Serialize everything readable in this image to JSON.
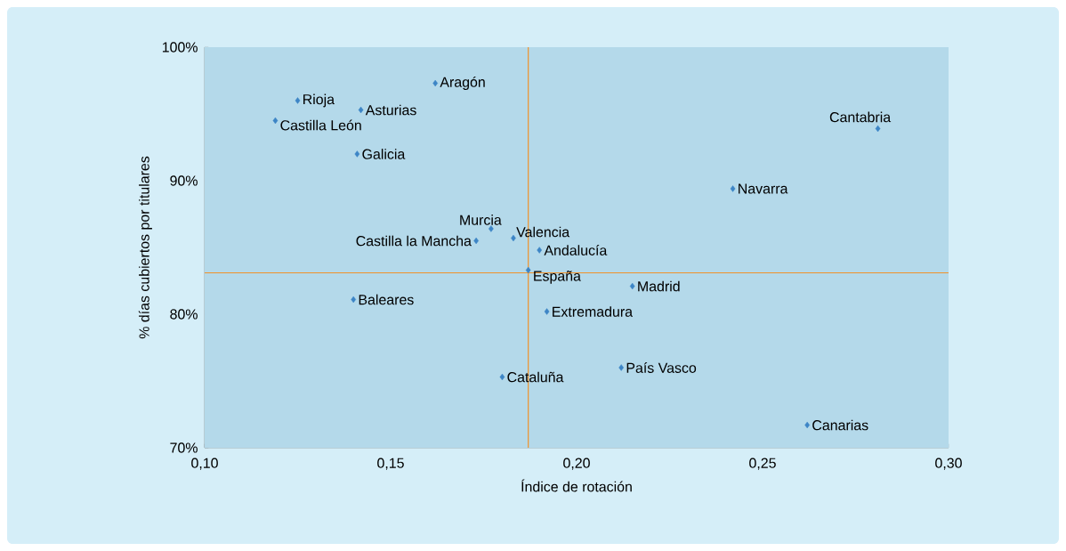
{
  "chart_data": {
    "type": "scatter",
    "xlabel": "Índice de rotación",
    "ylabel": "% días cubiertos por titulares",
    "xlim": [
      0.1,
      0.3
    ],
    "ylim": [
      70,
      100
    ],
    "xticks": [
      {
        "value": 0.1,
        "label": "0,10"
      },
      {
        "value": 0.15,
        "label": "0,15"
      },
      {
        "value": 0.2,
        "label": "0,20"
      },
      {
        "value": 0.25,
        "label": "0,25"
      },
      {
        "value": 0.3,
        "label": "0,30"
      }
    ],
    "yticks": [
      {
        "value": 70,
        "label": "70%"
      },
      {
        "value": 80,
        "label": "80%"
      },
      {
        "value": 90,
        "label": "90%"
      },
      {
        "value": 100,
        "label": "100%"
      }
    ],
    "grid": false,
    "marker": "diamond",
    "series": [
      {
        "color": "#3d85c6",
        "x": [
          0.162,
          0.125,
          0.142,
          0.119,
          0.141,
          0.281,
          0.242,
          0.177,
          0.183,
          0.173,
          0.19,
          0.187,
          0.215,
          0.14,
          0.192,
          0.212,
          0.18,
          0.262
        ],
        "values": [
          97.3,
          96.0,
          95.3,
          94.5,
          92.0,
          93.9,
          89.4,
          86.4,
          85.7,
          85.5,
          84.8,
          83.3,
          82.1,
          81.1,
          80.2,
          76.0,
          75.3,
          71.7
        ]
      }
    ],
    "ref_lines": [
      {
        "axis": "x",
        "value": 0.187,
        "color": "#f0922b"
      },
      {
        "axis": "y",
        "value": 83.1,
        "color": "#f0922b"
      }
    ],
    "annotations": [
      {
        "text": "Aragón",
        "x": 0.162,
        "y": 97.3
      },
      {
        "text": "Rioja",
        "x": 0.125,
        "y": 96.0
      },
      {
        "text": "Asturias",
        "x": 0.142,
        "y": 95.3
      },
      {
        "text": "Castilla León",
        "x": 0.119,
        "y": 94.5
      },
      {
        "text": "Galicia",
        "x": 0.141,
        "y": 92.0
      },
      {
        "text": "Cantabria",
        "x": 0.281,
        "y": 93.9
      },
      {
        "text": "Navarra",
        "x": 0.242,
        "y": 89.4
      },
      {
        "text": "Murcia",
        "x": 0.177,
        "y": 86.4
      },
      {
        "text": "Valencia",
        "x": 0.183,
        "y": 85.7
      },
      {
        "text": "Castilla la Mancha",
        "x": 0.173,
        "y": 85.5
      },
      {
        "text": "Andalucía",
        "x": 0.19,
        "y": 84.8
      },
      {
        "text": "España",
        "x": 0.187,
        "y": 83.3
      },
      {
        "text": "Madrid",
        "x": 0.215,
        "y": 82.1
      },
      {
        "text": "Baleares",
        "x": 0.14,
        "y": 81.1
      },
      {
        "text": "Extremadura",
        "x": 0.192,
        "y": 80.2
      },
      {
        "text": "País Vasco",
        "x": 0.212,
        "y": 76.0
      },
      {
        "text": "Cataluña",
        "x": 0.18,
        "y": 75.3
      },
      {
        "text": "Canarias",
        "x": 0.262,
        "y": 71.7
      }
    ]
  }
}
